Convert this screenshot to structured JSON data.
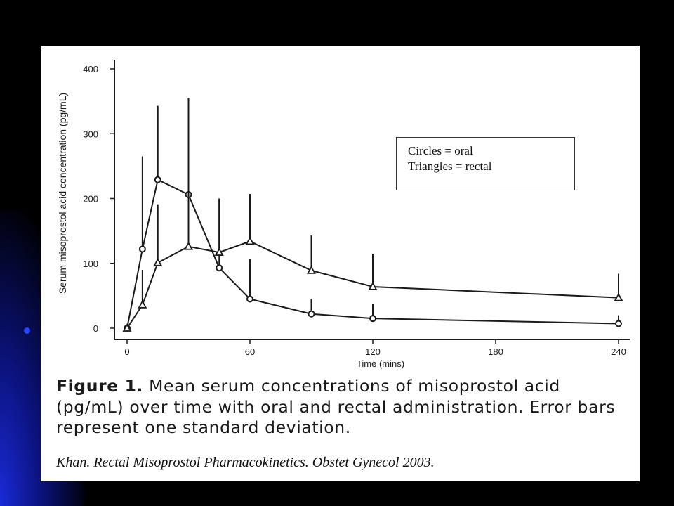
{
  "chart_data": {
    "type": "line",
    "xlabel": "Time (mins)",
    "ylabel": "Serum misoprostol acid concentration (pg/mL)",
    "xlim": [
      -10,
      245
    ],
    "ylim": [
      0,
      410
    ],
    "x_ticks": [
      0,
      60,
      120,
      180,
      240
    ],
    "y_ticks": [
      0,
      100,
      200,
      300,
      400
    ],
    "x": [
      0,
      7.5,
      15,
      30,
      45,
      60,
      90,
      120,
      240
    ],
    "series": [
      {
        "marker": "circle",
        "values": [
          0,
          122,
          229,
          206,
          93,
          45,
          22,
          15,
          7
        ],
        "err_top": [
          0,
          265,
          343,
          355,
          200,
          107,
          45,
          38,
          20
        ]
      },
      {
        "marker": "triangle",
        "values": [
          0,
          36,
          101,
          126,
          117,
          134,
          89,
          64,
          47
        ],
        "err_top": [
          0,
          90,
          191,
          355,
          200,
          207,
          143,
          115,
          84
        ]
      }
    ],
    "legend": {
      "position": "top-right",
      "entries": [
        "Circles = oral",
        "Triangles = rectal"
      ]
    },
    "grid": false
  },
  "caption": {
    "label": "Figure 1.",
    "text": "Mean serum concentrations of misoprostol acid (pg/mL) over time with oral and rectal administration. Error bars represent one standard deviation."
  },
  "citation": "Khan. Rectal Misoprostol Pharmacokinetics. Obstet Gynecol 2003.",
  "colors": {
    "background": "#000000",
    "panel": "#ffffff",
    "ink": "#1a1a1a",
    "accent_blue": "#1a2bd8"
  }
}
